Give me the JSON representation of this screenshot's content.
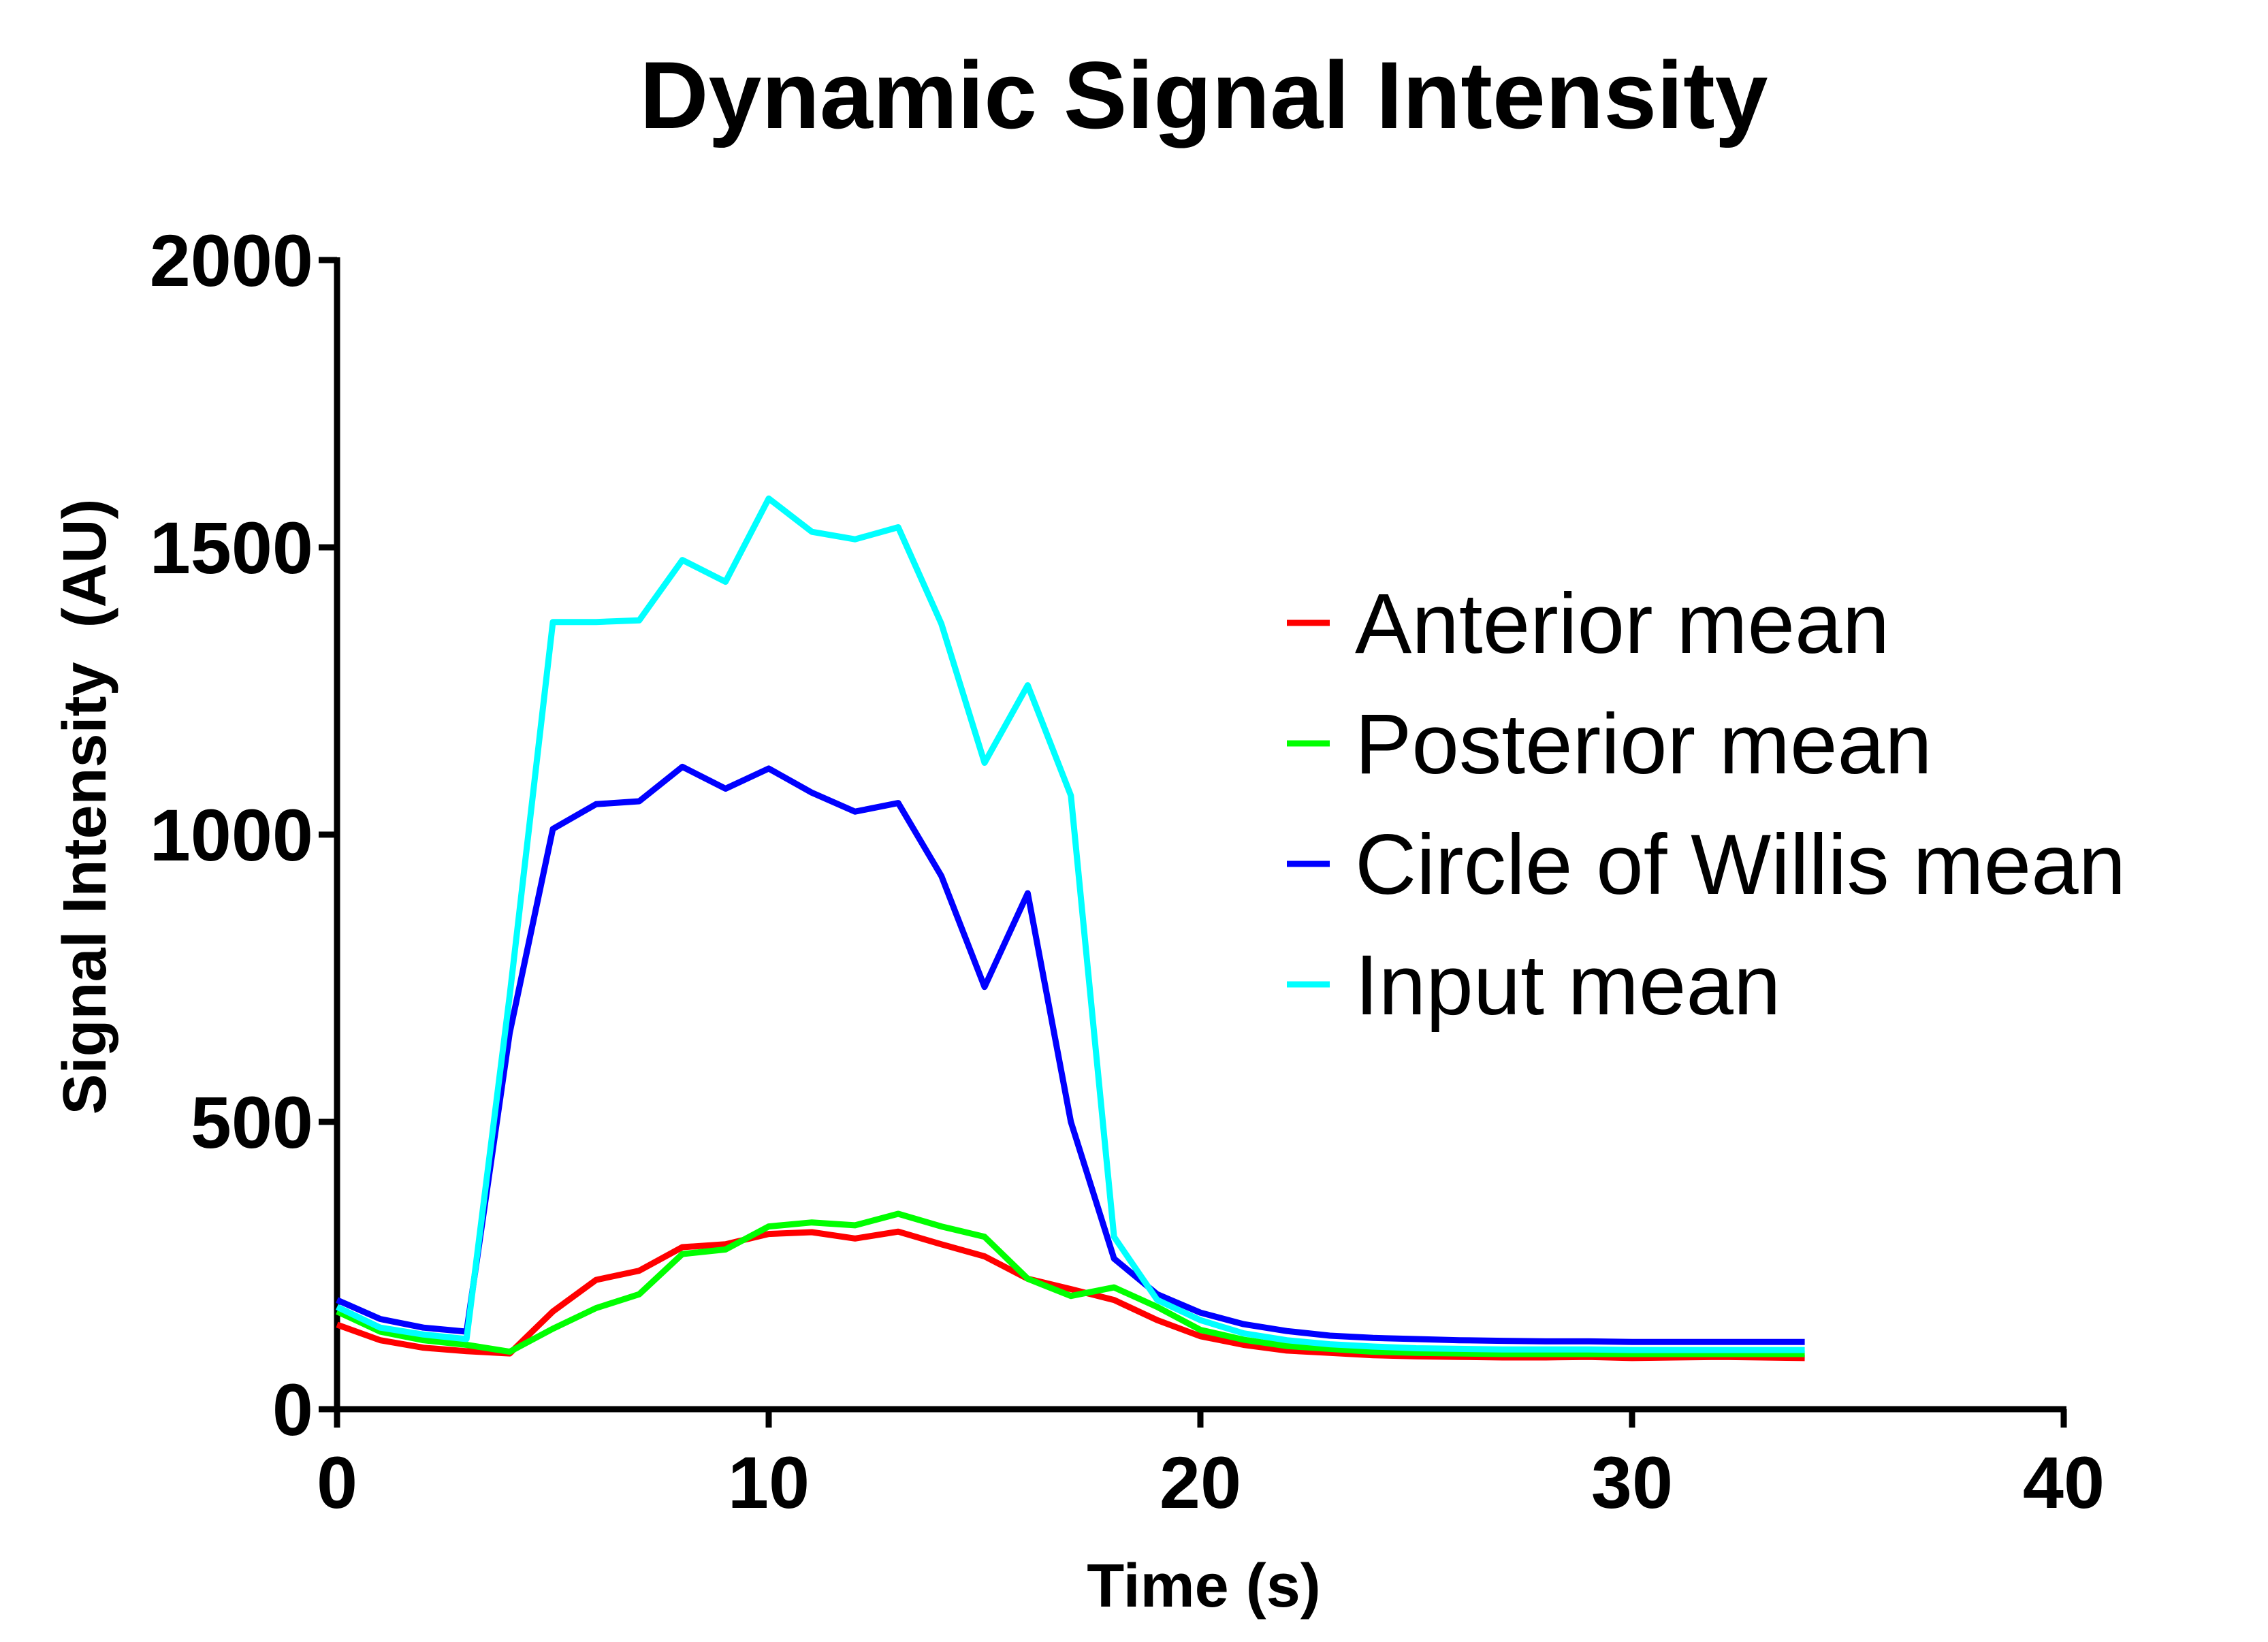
{
  "chart_data": {
    "type": "line",
    "title": "Dynamic Signal Intensity",
    "xlabel": "Time (s)",
    "ylabel": "Signal Intensity  (AU)",
    "xlim": [
      0,
      40
    ],
    "ylim": [
      0,
      2000
    ],
    "x_ticks": [
      0,
      10,
      20,
      30,
      40
    ],
    "y_ticks": [
      0,
      500,
      1000,
      1500,
      2000
    ],
    "grid": false,
    "legend_position": "right",
    "x": [
      0,
      1,
      2,
      3,
      4,
      5,
      6,
      7,
      8,
      9,
      10,
      11,
      12,
      13,
      14,
      15,
      16,
      17,
      18,
      19,
      20,
      21,
      22,
      23,
      24,
      25,
      26,
      27,
      28,
      29,
      30,
      31,
      32,
      33,
      34
    ],
    "series": [
      {
        "name": "Anterior mean",
        "color": "#ff0000",
        "values": [
          147,
          120,
          107,
          101,
          97,
          170,
          225,
          241,
          282,
          287,
          305,
          308,
          297,
          309,
          287,
          266,
          227,
          209,
          190,
          155,
          127,
          112,
          102,
          98,
          94,
          92,
          91,
          90,
          90,
          91,
          89,
          90,
          91,
          90,
          89
        ]
      },
      {
        "name": "Posterior mean",
        "color": "#00ff00",
        "values": [
          170,
          135,
          120,
          112,
          100,
          140,
          176,
          200,
          270,
          278,
          318,
          325,
          320,
          340,
          318,
          300,
          227,
          197,
          212,
          178,
          138,
          121,
          110,
          105,
          100,
          98,
          97,
          96,
          96,
          96,
          96,
          96,
          96,
          96,
          96
        ]
      },
      {
        "name": "Circle of Willis mean",
        "color": "#0000ff",
        "values": [
          190,
          157,
          142,
          135,
          655,
          1010,
          1053,
          1058,
          1118,
          1080,
          1115,
          1073,
          1040,
          1055,
          928,
          735,
          898,
          500,
          262,
          200,
          168,
          148,
          136,
          128,
          124,
          122,
          120,
          119,
          118,
          118,
          117,
          117,
          117,
          117,
          117
        ]
      },
      {
        "name": "Input mean",
        "color": "#00ffff",
        "values": [
          178,
          142,
          130,
          122,
          720,
          1370,
          1370,
          1373,
          1478,
          1440,
          1585,
          1527,
          1514,
          1535,
          1367,
          1125,
          1260,
          1068,
          300,
          190,
          155,
          132,
          120,
          113,
          109,
          106,
          105,
          104,
          104,
          104,
          103,
          103,
          103,
          103,
          103
        ]
      }
    ]
  }
}
